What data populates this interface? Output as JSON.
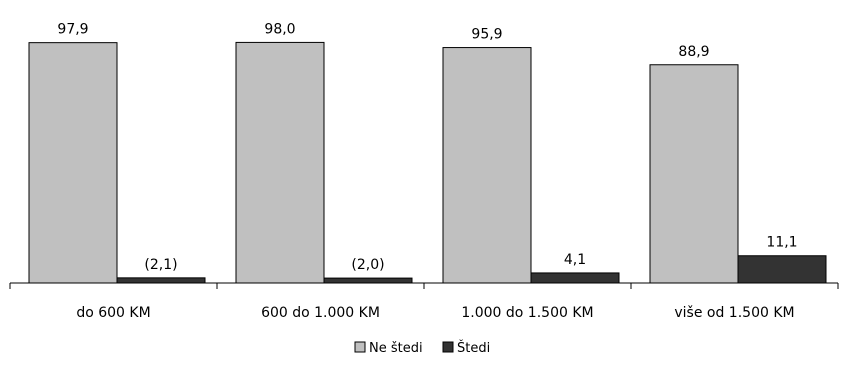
{
  "chart_data": {
    "type": "bar",
    "categories": [
      "do 600 KM",
      "600 do 1.000 KM",
      "1.000 do 1.500 KM",
      "više od 1.500 KM"
    ],
    "series": [
      {
        "name": "Ne štedi",
        "values": [
          97.9,
          98.0,
          95.9,
          88.9
        ],
        "labels": [
          "97,9",
          "98,0",
          "95,9",
          "88,9"
        ],
        "color": "#c0c0c0"
      },
      {
        "name": "Štedi",
        "values": [
          2.1,
          2.0,
          4.1,
          11.1
        ],
        "labels": [
          "(2,1)",
          "(2,0)",
          "4,1",
          "11,1"
        ],
        "color": "#333333"
      }
    ],
    "ylim": [
      0,
      100
    ],
    "grid": false,
    "legend": "bottom-center",
    "title": "",
    "xlabel": "",
    "ylabel": ""
  }
}
